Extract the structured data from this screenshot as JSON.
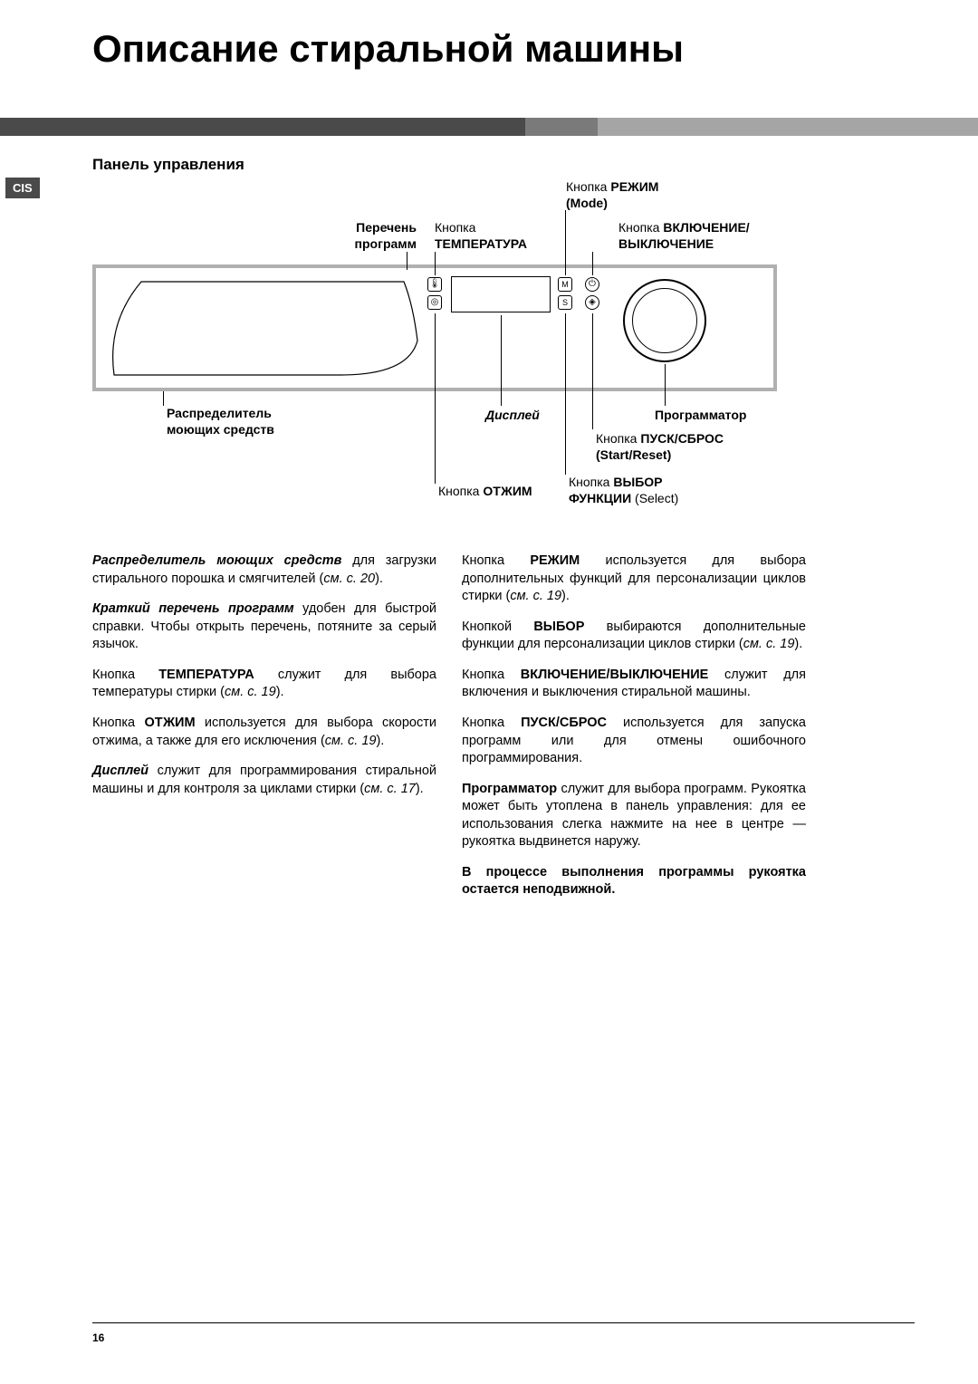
{
  "title": "Описание стиральной машины",
  "sidebarTag": "CIS",
  "sectionHeading": "Панель управления",
  "pageNumber": "16",
  "labels": {
    "programList": {
      "line1": "Перечень",
      "line2": "программ"
    },
    "temperature": {
      "pre": "Кнопка",
      "strong": "ТЕМПЕРАТУРА"
    },
    "mode": {
      "pre": "Кнопка ",
      "strong": "РЕЖИМ",
      "line2": "(Mode)"
    },
    "onoff": {
      "pre": "Кнопка ",
      "strong": "ВКЛЮЧЕНИЕ/",
      "line2strong": "ВЫКЛЮЧЕНИЕ"
    },
    "dispenser": {
      "line1": "Распределитель",
      "line2": "моющих средств"
    },
    "display": "Дисплей",
    "spin": {
      "pre": "Кнопка ",
      "strong": "ОТЖИМ"
    },
    "startReset": {
      "pre": "Кнопка ",
      "strong": "ПУСК/СБРОС",
      "line2": "(Start/Reset)"
    },
    "select": {
      "pre": "Кнопка ",
      "strong": "ВЫБОР",
      "line2strong": "ФУНКЦИИ",
      "line2post": " (Select)"
    },
    "programmer": "Программатор"
  },
  "leftColumn": [
    {
      "bi": "Распределитель моющих средств",
      "rest": " для загрузки стирального порошка и смягчителей (",
      "i": "см. с. 20",
      "post": ")."
    },
    {
      "bi": "Краткий перечень программ",
      "rest": " удобен для быстрой справки. Чтобы открыть перечень, потяните за серый язычок."
    },
    {
      "pre": "Кнопка ",
      "b": "ТЕМПЕРАТУРА",
      "rest": " служит для выбора температуры стирки (",
      "i": "см. с. 19",
      "post": ")."
    },
    {
      "pre": "Кнопка ",
      "b": "ОТЖИМ",
      "rest": " используется для выбора скорости отжима, а также для его исключения (",
      "i": "см. с. 19",
      "post": ")."
    },
    {
      "bi": "Дисплей",
      "rest": " служит для программирования стиральной машины и для контроля за циклами стирки (",
      "i": "см. с. 17",
      "post": ")."
    }
  ],
  "rightColumn": [
    {
      "pre": "Кнопка ",
      "b": "РЕЖИМ",
      "rest": " используется для выбора дополнительных функций для персонализации циклов стирки (",
      "i": "см. с. 19",
      "post": ")."
    },
    {
      "pre": "Кнопкой ",
      "b": "ВЫБОР",
      "rest": " выбираются дополнительные функции для персонализации циклов стирки (",
      "i": "см. с. 19",
      "post": ")."
    },
    {
      "pre": "Кнопка ",
      "b": "ВКЛЮЧЕНИЕ/ВЫКЛЮЧЕНИЕ",
      "rest": " служит для включения и выключения стиральной машины."
    },
    {
      "pre": "Кнопка ",
      "b": "ПУСК/СБРОС",
      "rest": " используется для запуска программ или для отмены ошибочного программирования."
    },
    {
      "b": "Программатор",
      "rest": " служит для выбора программ. Рукоятка может быть утоплена в панель управления: для ее использования слегка нажмите на нее в центре — рукоятка выдвинется наружу."
    },
    {
      "allbold": "В процессе выполнения программы рукоятка остается неподвижной."
    }
  ],
  "colors": {
    "band1": "#4a4a4a",
    "band2": "#7a7a7a",
    "band3": "#a5a5a5",
    "frame": "#b0b0b0"
  }
}
